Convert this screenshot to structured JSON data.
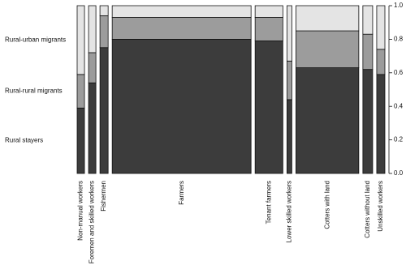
{
  "chart_data": {
    "type": "mosaic",
    "categories": [
      "Non-manual workers",
      "Foremen and skilled workers",
      "Fishermen",
      "Farmers",
      "Tenant farmers",
      "Lower skilled workers",
      "Cotters with land",
      "Cotters without land",
      "Unskilled workers"
    ],
    "widths": [
      9,
      9,
      10,
      170,
      34,
      6,
      77,
      12,
      10
    ],
    "series": [
      {
        "name": "Rural stayers",
        "color": "#3c3c3c",
        "values": [
          0.39,
          0.54,
          0.75,
          0.8,
          0.79,
          0.44,
          0.63,
          0.62,
          0.59
        ]
      },
      {
        "name": "Rural-rural migrants",
        "color": "#9c9c9c",
        "values": [
          0.2,
          0.18,
          0.19,
          0.13,
          0.14,
          0.23,
          0.22,
          0.21,
          0.15
        ]
      },
      {
        "name": "Rural-urban migrants",
        "color": "#e4e4e4",
        "values": [
          0.41,
          0.28,
          0.06,
          0.07,
          0.07,
          0.33,
          0.15,
          0.17,
          0.26
        ]
      }
    ],
    "ylim": [
      0,
      1
    ],
    "yticks": [
      {
        "value": 0,
        "label": "0.0"
      },
      {
        "value": 0.2,
        "label": "0.2"
      },
      {
        "value": 0.4,
        "label": "0.4"
      },
      {
        "value": 0.6,
        "label": "0.6"
      },
      {
        "value": 0.8,
        "label": "0.8"
      },
      {
        "value": 1,
        "label": "1.0"
      }
    ]
  }
}
